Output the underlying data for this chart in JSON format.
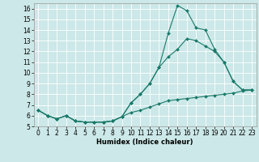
{
  "xlabel": "Humidex (Indice chaleur)",
  "bg_color": "#cce8e8",
  "grid_color": "#ffffff",
  "line_color": "#1a7a6a",
  "xlim": [
    -0.5,
    23.5
  ],
  "ylim": [
    5,
    16.5
  ],
  "xticks": [
    0,
    1,
    2,
    3,
    4,
    5,
    6,
    7,
    8,
    9,
    10,
    11,
    12,
    13,
    14,
    15,
    16,
    17,
    18,
    19,
    20,
    21,
    22,
    23
  ],
  "yticks": [
    5,
    6,
    7,
    8,
    9,
    10,
    11,
    12,
    13,
    14,
    15,
    16
  ],
  "line1_x": [
    0,
    1,
    2,
    3,
    4,
    5,
    6,
    7,
    8,
    9,
    10,
    11,
    12,
    13,
    14,
    15,
    16,
    17,
    18,
    19,
    20,
    21,
    22,
    23
  ],
  "line1_y": [
    6.5,
    6.0,
    5.7,
    6.0,
    5.5,
    5.4,
    5.4,
    5.4,
    5.5,
    5.9,
    7.2,
    8.0,
    9.0,
    10.5,
    13.7,
    16.3,
    15.8,
    14.2,
    14.0,
    12.2,
    11.0,
    9.2,
    8.4,
    8.4
  ],
  "line2_x": [
    0,
    1,
    2,
    3,
    4,
    5,
    6,
    7,
    8,
    9,
    10,
    11,
    12,
    13,
    14,
    15,
    16,
    17,
    18,
    19,
    20,
    21,
    22,
    23
  ],
  "line2_y": [
    6.5,
    6.0,
    5.7,
    6.0,
    5.5,
    5.4,
    5.4,
    5.4,
    5.5,
    5.9,
    7.2,
    8.0,
    9.0,
    10.5,
    11.5,
    12.2,
    13.2,
    13.0,
    12.5,
    12.0,
    11.0,
    9.2,
    8.4,
    8.4
  ],
  "line3_x": [
    0,
    1,
    2,
    3,
    4,
    5,
    6,
    7,
    8,
    9,
    10,
    11,
    12,
    13,
    14,
    15,
    16,
    17,
    18,
    19,
    20,
    21,
    22,
    23
  ],
  "line3_y": [
    6.5,
    6.0,
    5.7,
    6.0,
    5.5,
    5.4,
    5.4,
    5.4,
    5.5,
    5.9,
    6.3,
    6.5,
    6.8,
    7.1,
    7.4,
    7.5,
    7.6,
    7.7,
    7.8,
    7.9,
    8.0,
    8.1,
    8.3,
    8.4
  ],
  "tick_fontsize": 5.5,
  "xlabel_fontsize": 6.0,
  "marker_size": 2.0,
  "line_width": 0.8
}
